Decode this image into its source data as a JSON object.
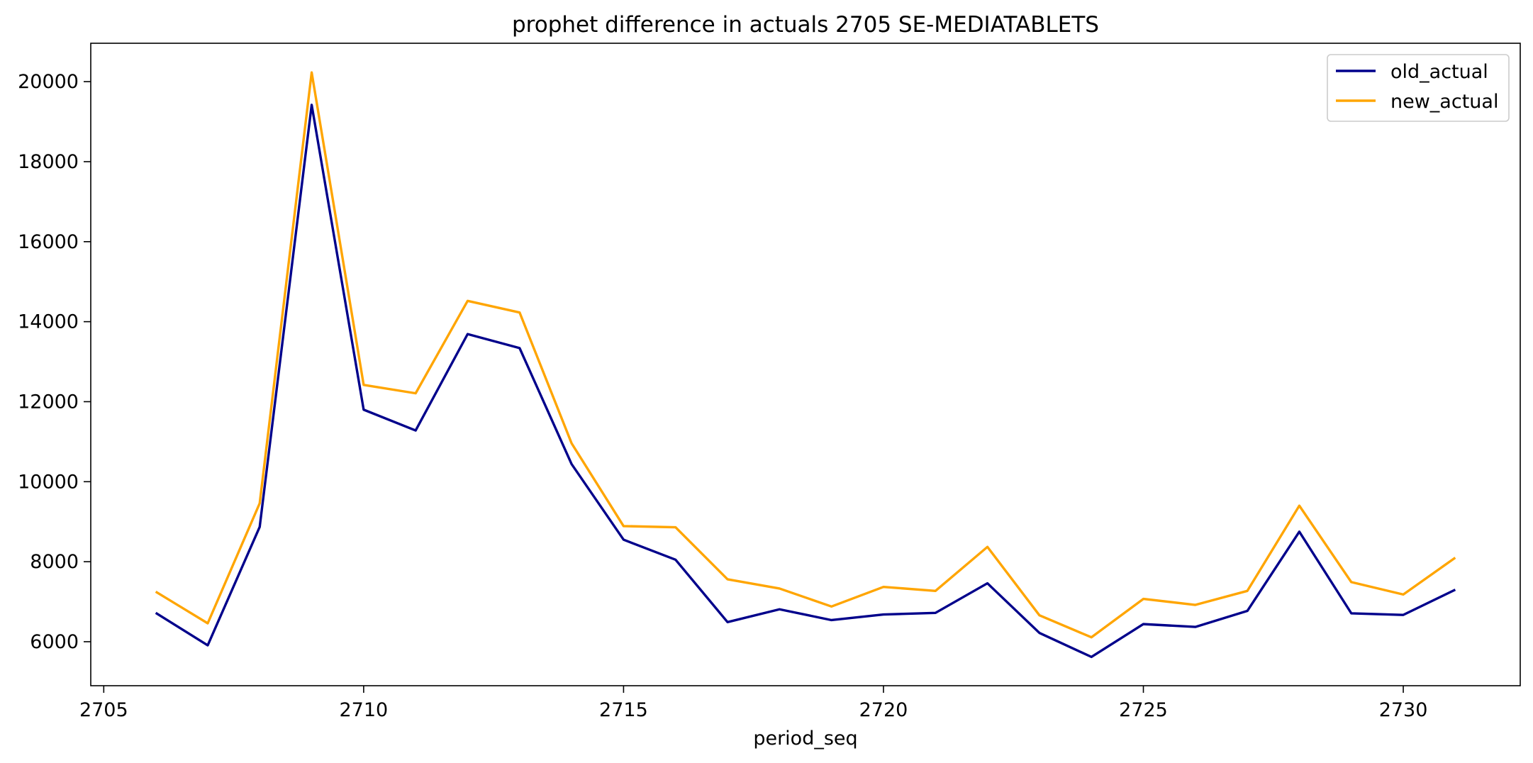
{
  "chart_data": {
    "type": "line",
    "title": "prophet difference in actuals 2705 SE-MEDIATABLETS",
    "xlabel": "period_seq",
    "ylabel": "",
    "x": [
      2706,
      2707,
      2708,
      2709,
      2710,
      2711,
      2712,
      2713,
      2714,
      2715,
      2716,
      2717,
      2718,
      2719,
      2720,
      2721,
      2722,
      2723,
      2724,
      2725,
      2726,
      2727,
      2728,
      2729,
      2730,
      2731
    ],
    "series": [
      {
        "name": "old_actual",
        "color": "#00008b",
        "values": [
          6720,
          5910,
          8870,
          19420,
          11800,
          11280,
          13690,
          13340,
          10440,
          8550,
          8050,
          6490,
          6810,
          6540,
          6680,
          6720,
          7460,
          6220,
          5620,
          6440,
          6370,
          6770,
          8750,
          6710,
          6670,
          7300
        ]
      },
      {
        "name": "new_actual",
        "color": "#ffa500",
        "values": [
          7250,
          6460,
          9460,
          20230,
          12420,
          12210,
          14520,
          14230,
          10960,
          8890,
          8860,
          7560,
          7330,
          6880,
          7370,
          7270,
          8370,
          6660,
          6110,
          7070,
          6920,
          7270,
          9400,
          7490,
          7180,
          8100
        ]
      }
    ],
    "xlim": [
      2704.75,
      2732.25
    ],
    "ylim": [
      4900,
      20960
    ],
    "xticks": [
      2705,
      2710,
      2715,
      2720,
      2725,
      2730
    ],
    "yticks": [
      6000,
      8000,
      10000,
      12000,
      14000,
      16000,
      18000,
      20000
    ],
    "grid": false,
    "legend_position": "top-right"
  }
}
